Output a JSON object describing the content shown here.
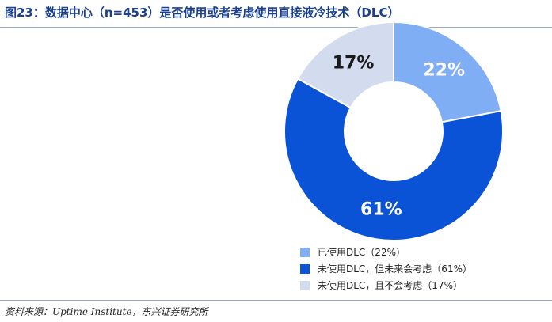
{
  "figure": {
    "title": "图23：数据中心（n=453）是否使用或者考虑使用直接液冷技术（DLC）",
    "source": "资料来源：Uptime Institute，东兴证券研究所"
  },
  "colors": {
    "title": "#1a3f8c",
    "slice_label_dark": "#1a1a1a",
    "slice_label_light": "#ffffff"
  },
  "chart_data": {
    "type": "pie",
    "donut": true,
    "start_angle_deg": 0,
    "direction": "clockwise",
    "legend_position": "bottom-right",
    "slices": [
      {
        "legend": "已使用DLC（22%）",
        "label": "22%",
        "value": 22,
        "color": "#7faef5",
        "label_color": "#ffffff"
      },
      {
        "legend": "未使用DLC，但未来会考虑（61%）",
        "label": "61%",
        "value": 61,
        "color": "#0a52d6",
        "label_color": "#ffffff"
      },
      {
        "legend": "未使用DLC，且不会考虑（17%）",
        "label": "17%",
        "value": 17,
        "color": "#d3dcee",
        "label_color": "#1a1a1a"
      }
    ]
  }
}
